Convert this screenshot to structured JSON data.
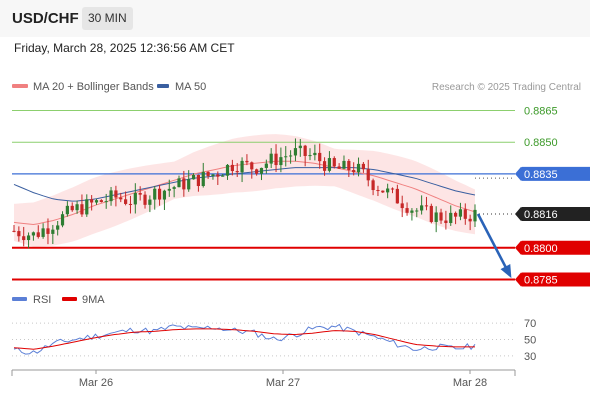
{
  "header": {
    "pair": "USD/CHF",
    "timeframe": "30 MIN",
    "timestamp": "Friday, March 28, 2025 12:36:56 AM CET"
  },
  "legend": {
    "ma20": "MA 20 + Bollinger Bands",
    "ma50": "MA 50",
    "credit": "Research © 2025 Trading Central",
    "rsi": "RSI",
    "rsi_ma": "9MA"
  },
  "colors": {
    "ma20": "#f08080",
    "band_fill": "#fde0e0",
    "ma50": "#3a5fa0",
    "up_candle": "#2e7d32",
    "down_candle": "#c62828",
    "resistance": "#8ccf6e",
    "pivot": "#3b6fd6",
    "support": "#e00000",
    "arrow": "#2a63b8",
    "rsi": "#5b7fd6",
    "rsi_ma": "#e00000"
  },
  "chart_data": [
    {
      "type": "candlestick",
      "title": "USD/CHF 30 MIN",
      "x_labels": [
        "Mar 26",
        "Mar 27",
        "Mar 28"
      ],
      "ylim": [
        0.878,
        0.887
      ],
      "last_price": "0.8816",
      "levels": [
        {
          "value": 0.8865,
          "label": "0.8865",
          "kind": "resistance"
        },
        {
          "value": 0.885,
          "label": "0.8850",
          "kind": "resistance"
        },
        {
          "value": 0.8835,
          "label": "0.8835",
          "kind": "pivot"
        },
        {
          "value": 0.88,
          "label": "0.8800",
          "kind": "support"
        },
        {
          "value": 0.8785,
          "label": "0.8785",
          "kind": "support"
        }
      ],
      "projection": {
        "from": 0.8816,
        "to": 0.8785,
        "direction": "down"
      },
      "close_path": [
        0.8808,
        0.8806,
        0.8812,
        0.8818,
        0.8821,
        0.8824,
        0.8822,
        0.8826,
        0.8829,
        0.8832,
        0.8835,
        0.884,
        0.8838,
        0.8842,
        0.8845,
        0.8843,
        0.8837,
        0.8838,
        0.883,
        0.8824,
        0.8818,
        0.8815,
        0.8814,
        0.8816
      ],
      "ma20_path": [
        0.8812,
        0.8811,
        0.8813,
        0.8816,
        0.882,
        0.8823,
        0.8826,
        0.8829,
        0.8832,
        0.8835,
        0.8837,
        0.8839,
        0.884,
        0.8841,
        0.8841,
        0.884,
        0.8838,
        0.8836,
        0.8834,
        0.8831,
        0.8828,
        0.8824,
        0.882,
        0.8817
      ],
      "ma50_path": [
        0.883,
        0.8826,
        0.8823,
        0.8822,
        0.8823,
        0.8825,
        0.8827,
        0.8829,
        0.8831,
        0.8833,
        0.8834,
        0.8835,
        0.8836,
        0.8837,
        0.8838,
        0.8838,
        0.8838,
        0.8838,
        0.8837,
        0.8835,
        0.8833,
        0.883,
        0.8827,
        0.8825
      ],
      "band_width": 0.0011
    },
    {
      "type": "line",
      "title": "RSI",
      "ylim": [
        20,
        80
      ],
      "y_ticks": [
        70,
        50,
        30
      ],
      "series": [
        {
          "name": "RSI",
          "values": [
            37,
            34,
            45,
            50,
            54,
            58,
            62,
            60,
            66,
            63,
            65,
            61,
            58,
            50,
            56,
            64,
            66,
            60,
            53,
            45,
            38,
            41,
            39,
            42
          ]
        },
        {
          "name": "9MA",
          "values": [
            40,
            38,
            42,
            47,
            52,
            56,
            59,
            60,
            62,
            63,
            63,
            62,
            60,
            57,
            56,
            58,
            61,
            60,
            56,
            50,
            44,
            42,
            41,
            41
          ]
        }
      ]
    }
  ]
}
